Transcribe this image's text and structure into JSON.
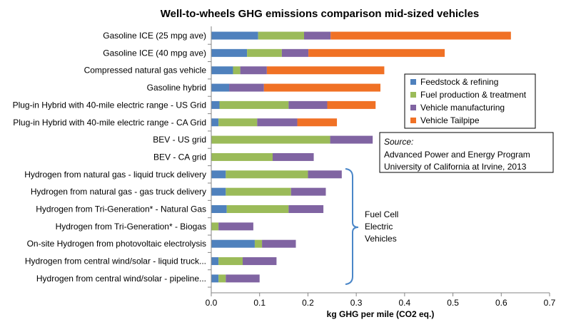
{
  "chart_data": {
    "type": "bar",
    "orientation": "horizontal",
    "stacked": true,
    "title": "Well-to-wheels GHG emissions comparison mid-sized vehicles",
    "xlabel": "kg GHG per mile (CO2 eq.)",
    "xlim": [
      0,
      0.7
    ],
    "xticks": [
      "0.0",
      "0.1",
      "0.2",
      "0.3",
      "0.4",
      "0.5",
      "0.6",
      "0.7"
    ],
    "grid": false,
    "legend_position": "right",
    "categories": [
      "Gasoline ICE (25 mpg ave)",
      "Gasoline ICE (40 mpg ave)",
      "Compressed natural gas vehicle",
      "Gasoline hybrid",
      "Plug-in Hybrid with 40-mile electric range - US Grid",
      "Plug-in Hybrid with 40-mile electric range - CA Grid",
      "BEV - US grid",
      "BEV - CA grid",
      "Hydrogen from natural gas - liquid truck delivery",
      "Hydrogen from natural gas - gas truck delivery",
      "Hydrogen from Tri-Generation* - Natural Gas",
      "Hydrogen from Tri-Generation* - Biogas",
      "On-site Hydrogen from photovoltaic electrolysis",
      "Hydrogen from central wind/solar - liquid truck...",
      "Hydrogen from central wind/solar - pipeline..."
    ],
    "series": [
      {
        "name": "Feedstock & refining",
        "color": "#4f81bd",
        "values": [
          0.097,
          0.074,
          0.045,
          0.037,
          0.017,
          0.015,
          0.0,
          0.0,
          0.03,
          0.03,
          0.032,
          0.0,
          0.09,
          0.015,
          0.015
        ]
      },
      {
        "name": "Fuel production & treatment",
        "color": "#9bbb59",
        "values": [
          0.095,
          0.072,
          0.015,
          0.0,
          0.143,
          0.08,
          0.246,
          0.127,
          0.17,
          0.135,
          0.128,
          0.015,
          0.015,
          0.05,
          0.015
        ]
      },
      {
        "name": "Vehicle manufacturing",
        "color": "#8064a2",
        "values": [
          0.055,
          0.055,
          0.055,
          0.072,
          0.08,
          0.083,
          0.088,
          0.085,
          0.07,
          0.072,
          0.072,
          0.072,
          0.07,
          0.07,
          0.07
        ]
      },
      {
        "name": "Vehicle Tailpipe",
        "color": "#f07125",
        "values": [
          0.373,
          0.282,
          0.243,
          0.241,
          0.1,
          0.082,
          0.0,
          0.0,
          0.0,
          0.0,
          0.0,
          0.0,
          0.0,
          0.0,
          0.0
        ]
      }
    ],
    "annotations": {
      "source_heading": "Source:",
      "source_line1": "Advanced Power and Energy Program",
      "source_line2": "University of California at Irvine, 2013",
      "bracket_label": [
        "Fuel Cell",
        "Electric",
        "Vehicles"
      ]
    }
  }
}
